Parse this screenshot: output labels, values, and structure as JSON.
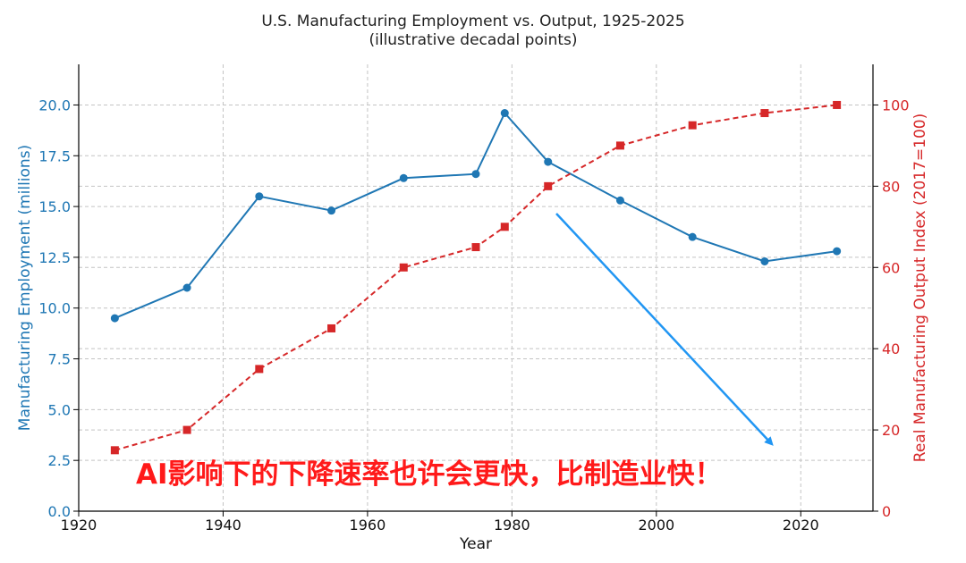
{
  "chart_data": {
    "type": "line",
    "title": "U.S. Manufacturing Employment vs. Output, 1925-2025",
    "subtitle": "(illustrative decadal points)",
    "xlabel": "Year",
    "ylabel_left": "Manufacturing Employment (millions)",
    "ylabel_right": "Real Manufacturing Output Index (2017=100)",
    "xlim": [
      1920,
      2030
    ],
    "ylim_left": [
      0,
      22
    ],
    "ylim_right": [
      0,
      110
    ],
    "grid": true,
    "x_ticks": [
      1920,
      1940,
      1960,
      1980,
      2000,
      2020
    ],
    "y_left_ticks": [
      "0.0",
      "2.5",
      "5.0",
      "7.5",
      "10.0",
      "12.5",
      "15.0",
      "17.5",
      "20.0"
    ],
    "y_right_ticks": [
      "0",
      "20",
      "40",
      "60",
      "80",
      "100"
    ],
    "series": [
      {
        "axis": "left",
        "color": "#1f77b4",
        "marker": "circle",
        "line_style": "solid",
        "x": [
          1925,
          1935,
          1945,
          1955,
          1965,
          1975,
          1979,
          1985,
          1995,
          2005,
          2015,
          2025
        ],
        "values": [
          9.5,
          11.0,
          15.5,
          14.8,
          16.4,
          16.6,
          19.6,
          17.2,
          15.3,
          13.5,
          12.3,
          12.8
        ]
      },
      {
        "axis": "right",
        "color": "#d62728",
        "marker": "square",
        "line_style": "dashed",
        "x": [
          1925,
          1935,
          1945,
          1955,
          1965,
          1975,
          1979,
          1985,
          1995,
          2005,
          2015,
          2025
        ],
        "values": [
          15,
          20,
          35,
          45,
          60,
          65,
          70,
          80,
          90,
          95,
          98,
          100
        ]
      }
    ],
    "annotation_arrow_color": "#2196f3",
    "annotation_text": "AI影响下的下降速率也许会更快，比制造业快！"
  }
}
